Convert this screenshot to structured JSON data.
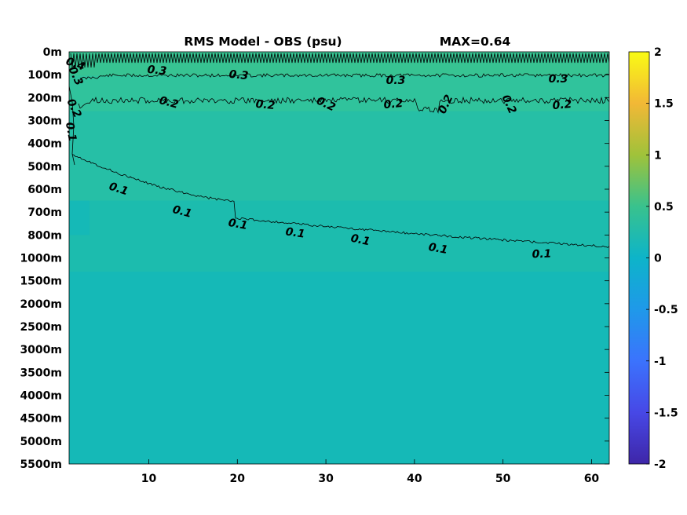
{
  "chart_data": {
    "type": "heatmap",
    "title": "RMS Model - OBS (psu)",
    "max_label": "MAX=0.64",
    "xlabel": "",
    "ylabel": "",
    "x_range": [
      1,
      62
    ],
    "x_ticks": [
      10,
      20,
      30,
      40,
      50,
      60
    ],
    "y_tick_labels": [
      "0m",
      "100m",
      "200m",
      "300m",
      "400m",
      "500m",
      "600m",
      "700m",
      "800m",
      "1000m",
      "1500m",
      "2000m",
      "2500m",
      "3000m",
      "3500m",
      "4000m",
      "4500m",
      "5000m",
      "5500m"
    ],
    "colorbar": {
      "range": [
        -2,
        2
      ],
      "ticks": [
        2,
        1.5,
        1,
        0.5,
        0,
        -0.5,
        -1,
        -1.5,
        -2
      ],
      "tick_labels": [
        "2",
        "1.5",
        "1",
        "0.5",
        "0",
        "-0.5",
        "-1",
        "-1.5",
        "-2"
      ],
      "colormap": "parula"
    },
    "contours": [
      {
        "level": 0.4,
        "labels": [
          "0.4"
        ]
      },
      {
        "level": 0.3,
        "labels": [
          "0.3",
          "0.3",
          "0.3",
          "0.3",
          "0.3"
        ]
      },
      {
        "level": 0.2,
        "labels": [
          "0.2",
          "0.2",
          "0.2",
          "0.2",
          "0.2",
          "0.2",
          "0.2",
          "0.2"
        ]
      },
      {
        "level": 0.1,
        "labels": [
          "0.1",
          "0.1",
          "0.1",
          "0.1",
          "0.1",
          "0.1",
          "0.1",
          "0.1"
        ]
      }
    ],
    "grid": false
  }
}
